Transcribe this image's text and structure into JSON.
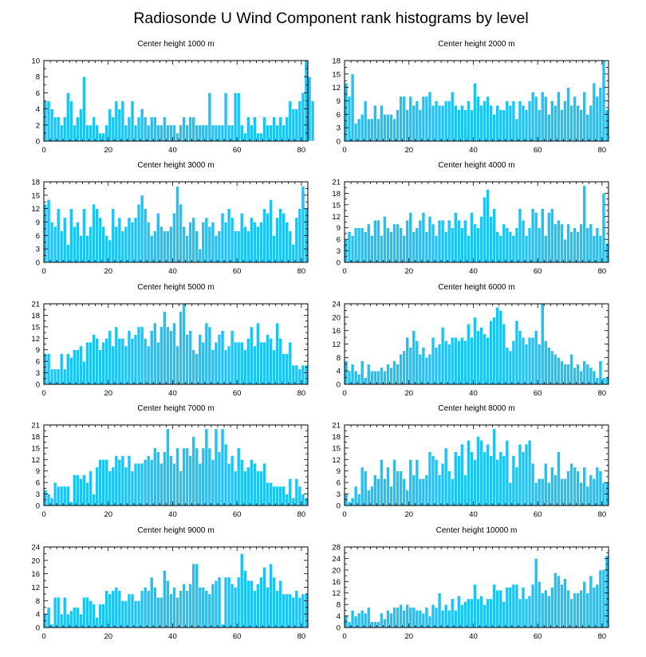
{
  "figure": {
    "title": "Radiosonde U Wind Component rank histograms by level"
  },
  "colors": {
    "bar": "#1ec3f5",
    "bar_edge": "#ffffff",
    "axis": "#000000",
    "text": "#000000"
  },
  "chart_data": [
    {
      "type": "bar",
      "title": "Center height 1000 m",
      "xlim": [
        0,
        82
      ],
      "ylim": [
        0,
        10
      ],
      "xticks": [
        0,
        20,
        40,
        60,
        80
      ],
      "yticks": [
        0,
        2,
        4,
        6,
        8,
        10
      ],
      "values": [
        5,
        5,
        4,
        3,
        3,
        2,
        3,
        6,
        5,
        2,
        3,
        4,
        8,
        2,
        2,
        3,
        2,
        1,
        1,
        2,
        4,
        3,
        5,
        4,
        5,
        2,
        3,
        5,
        2,
        3,
        4,
        3,
        2,
        3,
        3,
        2,
        2,
        3,
        2,
        2,
        2,
        1,
        2,
        3,
        2,
        3,
        3,
        2,
        2,
        2,
        2,
        6,
        2,
        2,
        2,
        2,
        6,
        2,
        2,
        6,
        6,
        2,
        1,
        3,
        2,
        3,
        1,
        1,
        3,
        2,
        2,
        3,
        2,
        3,
        2,
        3,
        5,
        4,
        4,
        5,
        6,
        10,
        8,
        5
      ]
    },
    {
      "type": "bar",
      "title": "Center height 2000 m",
      "xlim": [
        0,
        82
      ],
      "ylim": [
        0,
        18
      ],
      "xticks": [
        0,
        20,
        40,
        60,
        80
      ],
      "yticks": [
        0,
        3,
        6,
        9,
        12,
        15,
        18
      ],
      "values": [
        13,
        10,
        15,
        4,
        5,
        6,
        9,
        5,
        5,
        8,
        5,
        8,
        6,
        6,
        6,
        5,
        7,
        10,
        10,
        7,
        10,
        8,
        9,
        7,
        10,
        10,
        11,
        8,
        9,
        8,
        8,
        9,
        9,
        11,
        8,
        7,
        8,
        7,
        9,
        7,
        13,
        10,
        8,
        9,
        10,
        8,
        6,
        8,
        7,
        7,
        9,
        8,
        9,
        5,
        9,
        8,
        7,
        9,
        11,
        10,
        7,
        11,
        10,
        6,
        9,
        8,
        11,
        7,
        9,
        12,
        8,
        10,
        8,
        7,
        11,
        6,
        8,
        13,
        10,
        12,
        18,
        7
      ]
    },
    {
      "type": "bar",
      "title": "Center height 3000 m",
      "xlim": [
        0,
        82
      ],
      "ylim": [
        0,
        18
      ],
      "xticks": [
        0,
        20,
        40,
        60,
        80
      ],
      "yticks": [
        0,
        3,
        6,
        9,
        12,
        15,
        18
      ],
      "values": [
        13,
        14,
        9,
        8,
        12,
        7,
        10,
        4,
        12,
        8,
        9,
        6,
        12,
        6,
        8,
        13,
        12,
        10,
        8,
        6,
        5,
        12,
        8,
        10,
        7,
        8,
        10,
        9,
        10,
        13,
        15,
        12,
        9,
        6,
        7,
        11,
        8,
        7,
        7,
        8,
        11,
        17,
        13,
        8,
        6,
        9,
        10,
        7,
        3,
        9,
        10,
        8,
        9,
        6,
        7,
        11,
        9,
        12,
        10,
        7,
        7,
        11,
        8,
        7,
        10,
        9,
        8,
        9,
        12,
        11,
        14,
        6,
        10,
        12,
        11,
        9,
        7,
        4,
        10,
        12,
        17,
        12
      ]
    },
    {
      "type": "bar",
      "title": "Center height 4000 m",
      "xlim": [
        0,
        82
      ],
      "ylim": [
        0,
        21
      ],
      "xticks": [
        0,
        20,
        40,
        60,
        80
      ],
      "yticks": [
        0,
        3,
        6,
        9,
        12,
        15,
        18,
        21
      ],
      "values": [
        6,
        8,
        7,
        9,
        9,
        9,
        8,
        10,
        7,
        11,
        11,
        7,
        12,
        9,
        8,
        10,
        10,
        9,
        7,
        11,
        13,
        8,
        9,
        11,
        13,
        8,
        12,
        10,
        7,
        11,
        11,
        8,
        11,
        9,
        13,
        11,
        9,
        11,
        7,
        13,
        10,
        9,
        12,
        17,
        19,
        12,
        14,
        8,
        7,
        10,
        9,
        8,
        7,
        9,
        14,
        11,
        7,
        9,
        14,
        13,
        9,
        14,
        7,
        13,
        14,
        10,
        11,
        10,
        6,
        10,
        8,
        9,
        8,
        10,
        20,
        9,
        10,
        7,
        9,
        7,
        18,
        5
      ]
    },
    {
      "type": "bar",
      "title": "Center height 5000 m",
      "xlim": [
        0,
        82
      ],
      "ylim": [
        0,
        21
      ],
      "xticks": [
        0,
        20,
        40,
        60,
        80
      ],
      "yticks": [
        0,
        3,
        6,
        9,
        12,
        15,
        18,
        21
      ],
      "values": [
        8,
        8,
        4,
        4,
        4,
        8,
        4,
        8,
        7,
        9,
        9,
        10,
        6,
        11,
        11,
        13,
        12,
        9,
        11,
        12,
        14,
        10,
        15,
        12,
        12,
        10,
        14,
        12,
        13,
        15,
        15,
        12,
        10,
        14,
        16,
        11,
        15,
        19,
        15,
        14,
        16,
        10,
        19,
        21,
        13,
        14,
        9,
        8,
        13,
        11,
        16,
        15,
        9,
        11,
        13,
        14,
        9,
        10,
        14,
        11,
        11,
        11,
        9,
        12,
        15,
        10,
        16,
        11,
        11,
        13,
        12,
        9,
        16,
        12,
        8,
        8,
        11,
        5,
        5,
        4,
        5,
        5
      ]
    },
    {
      "type": "bar",
      "title": "Center height 6000 m",
      "xlim": [
        0,
        82
      ],
      "ylim": [
        0,
        24
      ],
      "xticks": [
        0,
        20,
        40,
        60,
        80
      ],
      "yticks": [
        0,
        4,
        8,
        12,
        16,
        20,
        24
      ],
      "values": [
        7,
        4,
        6,
        4,
        3,
        7,
        2,
        6,
        4,
        4,
        4,
        5,
        4,
        6,
        5,
        7,
        6,
        9,
        10,
        14,
        11,
        16,
        13,
        9,
        11,
        8,
        9,
        14,
        11,
        12,
        17,
        13,
        12,
        14,
        14,
        13,
        14,
        13,
        18,
        14,
        20,
        16,
        17,
        15,
        14,
        19,
        20,
        23,
        22,
        18,
        11,
        10,
        13,
        19,
        16,
        14,
        12,
        14,
        14,
        16,
        12,
        24,
        13,
        11,
        10,
        9,
        8,
        7,
        6,
        6,
        9,
        5,
        6,
        4,
        7,
        6,
        5,
        4,
        2,
        7,
        2,
        2
      ]
    },
    {
      "type": "bar",
      "title": "Center height 7000 m",
      "xlim": [
        0,
        82
      ],
      "ylim": [
        0,
        21
      ],
      "xticks": [
        0,
        20,
        40,
        60,
        80
      ],
      "yticks": [
        0,
        3,
        6,
        9,
        12,
        15,
        18,
        21
      ],
      "values": [
        4,
        3,
        2,
        6,
        5,
        5,
        5,
        5,
        1,
        8,
        8,
        7,
        8,
        6,
        9,
        3,
        10,
        12,
        12,
        12,
        9,
        10,
        13,
        12,
        13,
        10,
        13,
        9,
        11,
        11,
        11,
        12,
        13,
        12,
        15,
        14,
        11,
        14,
        20,
        13,
        11,
        15,
        9,
        15,
        15,
        13,
        18,
        15,
        11,
        15,
        20,
        15,
        12,
        20,
        14,
        20,
        16,
        11,
        13,
        9,
        15,
        12,
        9,
        10,
        12,
        11,
        9,
        9,
        11,
        6,
        6,
        5,
        5,
        5,
        5,
        3,
        7,
        2,
        7,
        5,
        3,
        2
      ]
    },
    {
      "type": "bar",
      "title": "Center height 8000 m",
      "xlim": [
        0,
        82
      ],
      "ylim": [
        0,
        21
      ],
      "xticks": [
        0,
        20,
        40,
        60,
        80
      ],
      "yticks": [
        0,
        3,
        6,
        9,
        12,
        15,
        18,
        21
      ],
      "values": [
        3,
        1,
        2,
        5,
        3,
        10,
        9,
        4,
        5,
        8,
        7,
        12,
        7,
        10,
        5,
        12,
        9,
        9,
        7,
        4,
        12,
        8,
        12,
        7,
        7,
        8,
        14,
        13,
        12,
        8,
        11,
        15,
        9,
        7,
        14,
        13,
        16,
        8,
        17,
        14,
        12,
        18,
        17,
        14,
        16,
        13,
        20,
        12,
        14,
        13,
        17,
        6,
        13,
        10,
        16,
        14,
        16,
        17,
        11,
        6,
        7,
        7,
        11,
        6,
        10,
        8,
        14,
        7,
        7,
        9,
        11,
        10,
        9,
        6,
        10,
        5,
        8,
        7,
        10,
        9,
        6,
        6
      ]
    },
    {
      "type": "bar",
      "title": "Center height 9000 m",
      "xlim": [
        0,
        82
      ],
      "ylim": [
        0,
        24
      ],
      "xticks": [
        0,
        20,
        40,
        60,
        80
      ],
      "yticks": [
        0,
        4,
        8,
        12,
        16,
        20,
        24
      ],
      "values": [
        4,
        6,
        1,
        9,
        9,
        4,
        9,
        4,
        5,
        6,
        6,
        4,
        9,
        9,
        8,
        7,
        3,
        7,
        7,
        11,
        10,
        11,
        12,
        11,
        8,
        8,
        10,
        10,
        8,
        8,
        11,
        12,
        11,
        15,
        12,
        9,
        9,
        17,
        14,
        10,
        12,
        9,
        11,
        13,
        11,
        13,
        19,
        19,
        12,
        12,
        11,
        10,
        13,
        14,
        15,
        1,
        15,
        15,
        13,
        12,
        15,
        22,
        17,
        14,
        14,
        11,
        13,
        15,
        18,
        12,
        19,
        15,
        11,
        14,
        10,
        10,
        10,
        9,
        11,
        9,
        10,
        10
      ]
    },
    {
      "type": "bar",
      "title": "Center height 10000 m",
      "xlim": [
        0,
        82
      ],
      "ylim": [
        0,
        28
      ],
      "xticks": [
        0,
        20,
        40,
        60,
        80
      ],
      "yticks": [
        0,
        4,
        8,
        12,
        16,
        20,
        24,
        28
      ],
      "values": [
        4,
        2,
        6,
        4,
        5,
        6,
        5,
        7,
        2,
        2,
        2,
        5,
        3,
        6,
        5,
        7,
        7,
        8,
        6,
        8,
        7,
        7,
        6,
        6,
        5,
        7,
        4,
        8,
        7,
        12,
        6,
        8,
        6,
        10,
        6,
        11,
        8,
        9,
        10,
        10,
        15,
        10,
        11,
        8,
        10,
        10,
        15,
        13,
        13,
        9,
        14,
        14,
        15,
        15,
        10,
        14,
        10,
        11,
        15,
        24,
        16,
        12,
        13,
        11,
        14,
        19,
        18,
        15,
        17,
        13,
        10,
        12,
        12,
        13,
        16,
        12,
        18,
        14,
        15,
        20,
        20,
        25
      ]
    }
  ]
}
